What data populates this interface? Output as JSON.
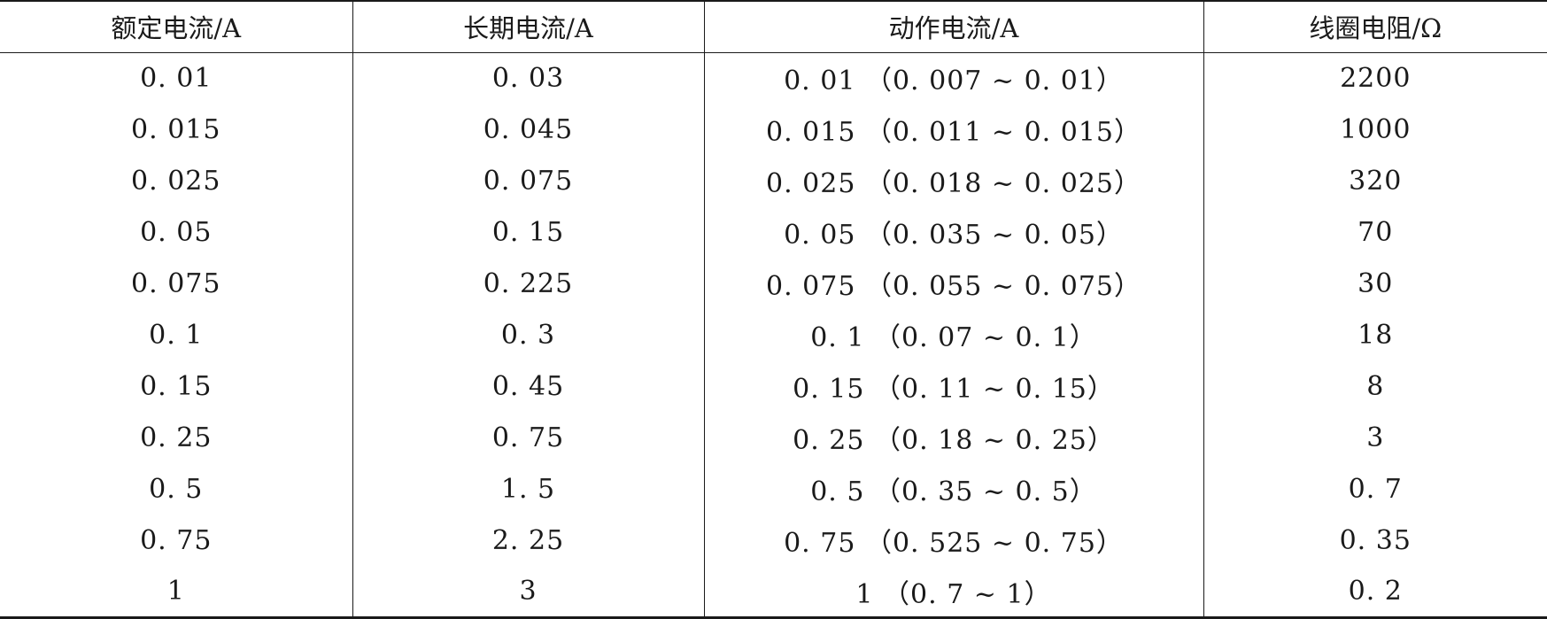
{
  "table": {
    "headers": [
      "额定电流/A",
      "长期电流/A",
      "动作电流/A",
      "线圈电阻/Ω"
    ],
    "rows": [
      [
        "0. 01",
        "0. 03",
        "0. 01 （0. 007 ~ 0. 01）",
        "2200"
      ],
      [
        "0. 015",
        "0. 045",
        "0. 015 （0. 011 ~ 0. 015）",
        "1000"
      ],
      [
        "0. 025",
        "0. 075",
        "0. 025 （0. 018 ~ 0. 025）",
        "320"
      ],
      [
        "0. 05",
        "0. 15",
        "0. 05 （0. 035 ~ 0. 05）",
        "70"
      ],
      [
        "0. 075",
        "0. 225",
        "0. 075 （0. 055 ~ 0. 075）",
        "30"
      ],
      [
        "0. 1",
        "0. 3",
        "0. 1 （0. 07 ~ 0. 1）",
        "18"
      ],
      [
        "0. 15",
        "0. 45",
        "0. 15 （0. 11 ~ 0. 15）",
        "8"
      ],
      [
        "0. 25",
        "0. 75",
        "0. 25 （0. 18 ~ 0. 25）",
        "3"
      ],
      [
        "0. 5",
        "1. 5",
        "0. 5 （0. 35 ~ 0. 5）",
        "0. 7"
      ],
      [
        "0. 75",
        "2. 25",
        "0. 75 （0. 525 ~ 0. 75）",
        "0. 35"
      ],
      [
        "1",
        "3",
        "1 （0. 7 ~ 1）",
        "0. 2"
      ]
    ]
  }
}
